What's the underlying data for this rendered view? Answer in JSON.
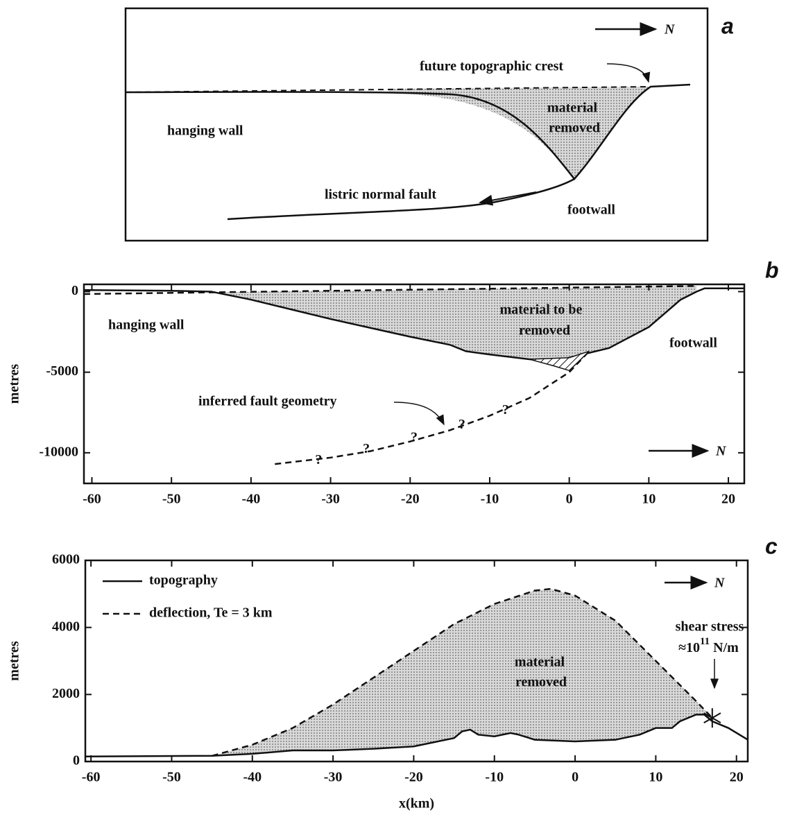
{
  "diagram": {
    "panel_label": "a",
    "north": "N",
    "crest": "future topographic crest",
    "material": "material",
    "removed": "removed",
    "hanging_wall": "hanging wall",
    "fault": "listric normal fault",
    "footwall": "footwall"
  },
  "chart_data": [
    {
      "type": "line",
      "panel_label": "b",
      "north": "N",
      "y_label": "metres",
      "xlim": [
        -61,
        22
      ],
      "ylim": [
        -11900,
        450
      ],
      "xticks": [
        -60,
        -50,
        -40,
        -30,
        -20,
        -10,
        0,
        10,
        20
      ],
      "yticks": [
        -10000,
        -5000,
        0
      ],
      "texts": [
        "hanging wall",
        "material to be",
        "removed",
        "footwall",
        "inferred fault geometry"
      ],
      "series": [
        {
          "style": "solid",
          "x": [
            -61,
            -50,
            -45,
            -40,
            -35,
            -30,
            -25,
            -20,
            -15,
            -13,
            -10,
            -5,
            -2,
            0,
            5,
            10,
            14,
            16,
            17,
            22
          ],
          "values": [
            100,
            50,
            0,
            -500,
            -1100,
            -1700,
            -2250,
            -2800,
            -3300,
            -3700,
            -3900,
            -4200,
            -4300,
            -4100,
            -3500,
            -2200,
            -500,
            0,
            200,
            200
          ]
        },
        {
          "style": "dashed",
          "x": [
            -61,
            16
          ],
          "values": [
            -150,
            350
          ]
        },
        {
          "style": "dashed",
          "x": [
            -37,
            -30,
            -25,
            -20,
            -15,
            -10,
            -5,
            0,
            2.5
          ],
          "values": [
            -10700,
            -10300,
            -9900,
            -9300,
            -8600,
            -7700,
            -6600,
            -5000,
            -3700
          ]
        },
        {
          "style": "hatch",
          "x": [
            -5,
            -2,
            0,
            2.5,
            0
          ],
          "values": [
            -4200,
            -4600,
            -4900,
            -3700,
            -4100
          ]
        }
      ],
      "annotations": [
        {
          "text": "?",
          "x": -31.5,
          "y": -10500
        },
        {
          "text": "?",
          "x": -25.5,
          "y": -9800
        },
        {
          "text": "?",
          "x": -19.5,
          "y": -9100
        },
        {
          "text": "?",
          "x": -13.5,
          "y": -8300
        },
        {
          "text": "?",
          "x": -8,
          "y": -7400
        }
      ]
    },
    {
      "type": "line",
      "panel_label": "c",
      "north": "N",
      "y_label": "metres",
      "x_label": "x(km)",
      "xlim": [
        -60.7,
        21.4
      ],
      "ylim": [
        0,
        6000
      ],
      "xticks": [
        -60,
        -50,
        -40,
        -30,
        -20,
        -10,
        0,
        10,
        20
      ],
      "yticks": [
        0,
        2000,
        4000,
        6000
      ],
      "texts": [
        "material",
        "removed"
      ],
      "shear_stress": [
        "shear stress",
        "≈10",
        "11",
        "N/m"
      ],
      "marker": {
        "x": 17,
        "y": 1300
      },
      "series": [
        {
          "name": "topography",
          "style": "solid",
          "x": [
            -60.7,
            -45,
            -40,
            -35,
            -30,
            -25,
            -20,
            -17,
            -15,
            -14,
            -13,
            -12,
            -10,
            -8,
            -7,
            -5,
            0,
            5,
            8,
            10,
            12,
            13,
            15,
            16,
            17,
            19,
            21.4
          ],
          "values": [
            150,
            170,
            230,
            330,
            330,
            380,
            450,
            600,
            700,
            900,
            950,
            800,
            750,
            850,
            800,
            650,
            600,
            650,
            800,
            1000,
            1000,
            1200,
            1400,
            1400,
            1200,
            1000,
            650
          ]
        },
        {
          "name": "deflection, Te =  3 km",
          "style": "dashed",
          "x": [
            -45,
            -40,
            -35,
            -30,
            -25,
            -20,
            -15,
            -10,
            -5,
            -3,
            0,
            5,
            10,
            15,
            17
          ],
          "values": [
            170,
            500,
            1000,
            1700,
            2500,
            3300,
            4100,
            4700,
            5100,
            5150,
            4950,
            4200,
            3000,
            1800,
            1300
          ]
        }
      ]
    }
  ]
}
